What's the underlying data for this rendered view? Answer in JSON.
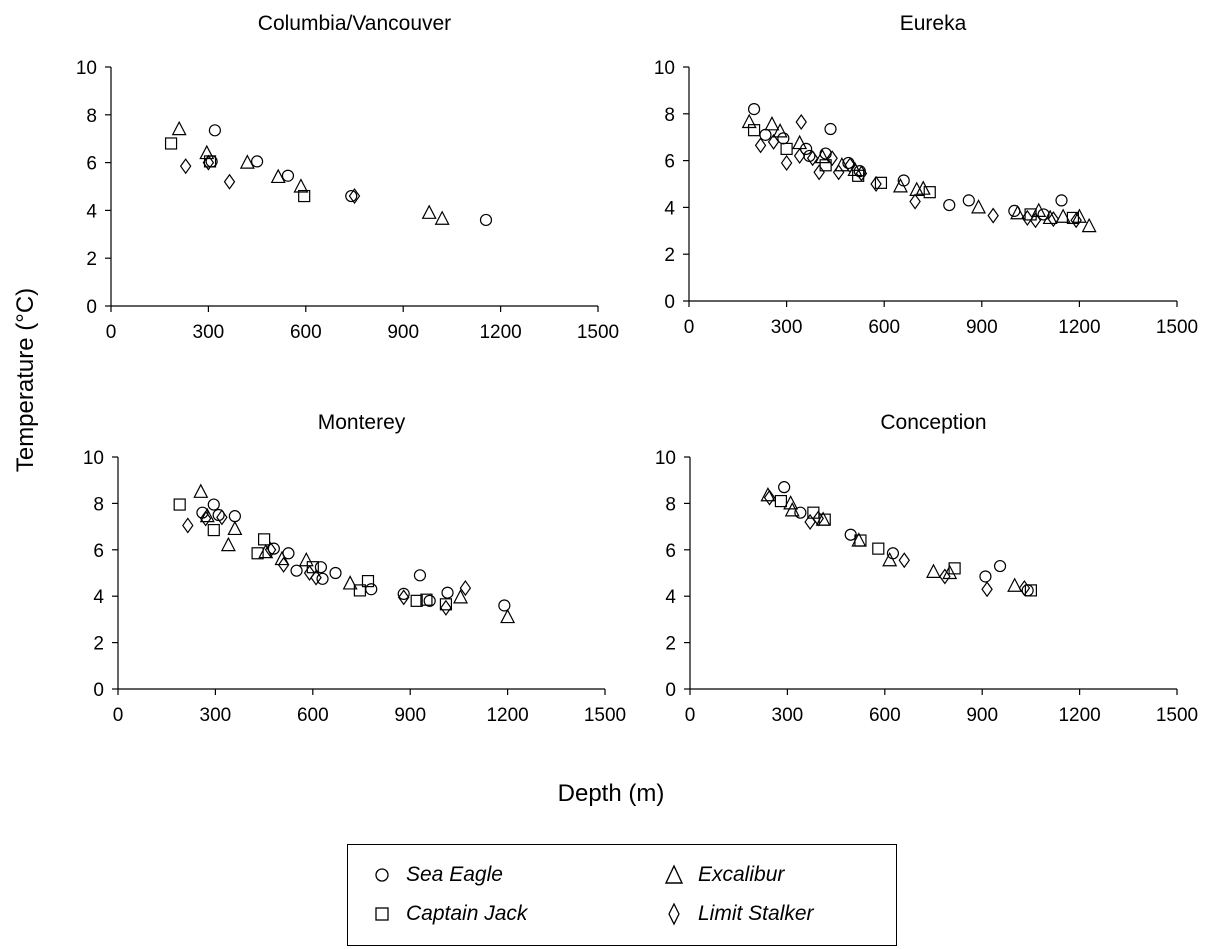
{
  "chart_data": {
    "type": "scatter",
    "ylabel": "Temperature (°C)",
    "xlabel": "Depth (m)",
    "x_ticks": [
      "0",
      "300",
      "600",
      "900",
      "1200",
      "1500"
    ],
    "y_ticks": [
      "0",
      "2",
      "4",
      "6",
      "8",
      "10"
    ],
    "xlim": [
      0,
      1500
    ],
    "ylim": [
      0,
      10
    ],
    "grid": false,
    "legend_position": "bottom-center",
    "legend": [
      {
        "name": "Sea Eagle",
        "marker": "circle"
      },
      {
        "name": "Excalibur",
        "marker": "triangle"
      },
      {
        "name": "Captain Jack",
        "marker": "square"
      },
      {
        "name": "Limit Stalker",
        "marker": "diamond"
      }
    ],
    "panels": [
      {
        "title": "Columbia/Vancouver",
        "series": [
          {
            "name": "Sea Eagle",
            "marker": "circle",
            "points": [
              [
                320,
                7.35
              ],
              [
                310,
                6.05
              ],
              [
                450,
                6.05
              ],
              [
                545,
                5.45
              ],
              [
                740,
                4.6
              ],
              [
                1155,
                3.6
              ]
            ]
          },
          {
            "name": "Captain Jack",
            "marker": "square",
            "points": [
              [
                185,
                6.8
              ],
              [
                305,
                6.05
              ],
              [
                595,
                4.6
              ]
            ]
          },
          {
            "name": "Excalibur",
            "marker": "triangle",
            "points": [
              [
                210,
                7.4
              ],
              [
                295,
                6.4
              ],
              [
                420,
                6.0
              ],
              [
                515,
                5.4
              ],
              [
                585,
                5.0
              ],
              [
                980,
                3.9
              ],
              [
                1020,
                3.65
              ]
            ]
          },
          {
            "name": "Limit Stalker",
            "marker": "diamond",
            "points": [
              [
                230,
                5.85
              ],
              [
                300,
                6.0
              ],
              [
                365,
                5.2
              ],
              [
                750,
                4.6
              ]
            ]
          }
        ]
      },
      {
        "title": "Eureka",
        "series": [
          {
            "name": "Sea Eagle",
            "marker": "circle",
            "points": [
              [
                200,
                8.2
              ],
              [
                235,
                7.1
              ],
              [
                290,
                6.95
              ],
              [
                360,
                6.5
              ],
              [
                370,
                6.2
              ],
              [
                420,
                6.3
              ],
              [
                435,
                7.35
              ],
              [
                490,
                5.9
              ],
              [
                525,
                5.55
              ],
              [
                660,
                5.15
              ],
              [
                800,
                4.1
              ],
              [
                860,
                4.3
              ],
              [
                1000,
                3.85
              ],
              [
                1090,
                3.7
              ],
              [
                1145,
                4.3
              ]
            ]
          },
          {
            "name": "Captain Jack",
            "marker": "square",
            "points": [
              [
                200,
                7.3
              ],
              [
                300,
                6.5
              ],
              [
                420,
                5.8
              ],
              [
                520,
                5.35
              ],
              [
                590,
                5.05
              ],
              [
                740,
                4.65
              ],
              [
                1050,
                3.7
              ],
              [
                1180,
                3.55
              ]
            ]
          },
          {
            "name": "Excalibur",
            "marker": "triangle",
            "points": [
              [
                185,
                7.65
              ],
              [
                255,
                7.55
              ],
              [
                280,
                7.25
              ],
              [
                340,
                6.75
              ],
              [
                410,
                6.15
              ],
              [
                470,
                5.8
              ],
              [
                510,
                5.6
              ],
              [
                650,
                4.9
              ],
              [
                700,
                4.75
              ],
              [
                720,
                4.8
              ],
              [
                890,
                4.0
              ],
              [
                1010,
                3.75
              ],
              [
                1075,
                3.85
              ],
              [
                1110,
                3.55
              ],
              [
                1150,
                3.6
              ],
              [
                1200,
                3.6
              ],
              [
                1230,
                3.2
              ]
            ]
          },
          {
            "name": "Limit Stalker",
            "marker": "diamond",
            "points": [
              [
                220,
                6.65
              ],
              [
                260,
                6.8
              ],
              [
                300,
                5.9
              ],
              [
                340,
                6.2
              ],
              [
                345,
                7.65
              ],
              [
                380,
                6.1
              ],
              [
                400,
                5.5
              ],
              [
                440,
                6.1
              ],
              [
                460,
                5.5
              ],
              [
                495,
                5.8
              ],
              [
                530,
                5.45
              ],
              [
                575,
                5.0
              ],
              [
                695,
                4.25
              ],
              [
                935,
                3.65
              ],
              [
                1040,
                3.55
              ],
              [
                1065,
                3.45
              ],
              [
                1120,
                3.5
              ],
              [
                1190,
                3.45
              ]
            ]
          }
        ]
      },
      {
        "title": "Monterey",
        "series": [
          {
            "name": "Sea Eagle",
            "marker": "circle",
            "points": [
              [
                260,
                7.6
              ],
              [
                295,
                7.95
              ],
              [
                310,
                7.5
              ],
              [
                360,
                7.45
              ],
              [
                480,
                6.05
              ],
              [
                525,
                5.85
              ],
              [
                550,
                5.1
              ],
              [
                625,
                5.25
              ],
              [
                630,
                4.75
              ],
              [
                670,
                5.0
              ],
              [
                780,
                4.3
              ],
              [
                880,
                4.1
              ],
              [
                930,
                4.9
              ],
              [
                960,
                3.8
              ],
              [
                1015,
                4.15
              ],
              [
                1190,
                3.6
              ]
            ]
          },
          {
            "name": "Captain Jack",
            "marker": "square",
            "points": [
              [
                190,
                7.95
              ],
              [
                295,
                6.85
              ],
              [
                430,
                5.85
              ],
              [
                450,
                6.45
              ],
              [
                600,
                5.25
              ],
              [
                745,
                4.25
              ],
              [
                770,
                4.65
              ],
              [
                920,
                3.8
              ],
              [
                950,
                3.85
              ],
              [
                1010,
                3.65
              ]
            ]
          },
          {
            "name": "Excalibur",
            "marker": "triangle",
            "points": [
              [
                255,
                8.5
              ],
              [
                275,
                7.45
              ],
              [
                340,
                6.2
              ],
              [
                360,
                6.9
              ],
              [
                455,
                5.9
              ],
              [
                505,
                5.6
              ],
              [
                580,
                5.55
              ],
              [
                715,
                4.55
              ],
              [
                1055,
                3.95
              ],
              [
                1200,
                3.1
              ]
            ]
          },
          {
            "name": "Limit Stalker",
            "marker": "diamond",
            "points": [
              [
                215,
                7.05
              ],
              [
                270,
                7.35
              ],
              [
                320,
                7.4
              ],
              [
                470,
                6.0
              ],
              [
                510,
                5.35
              ],
              [
                590,
                5.0
              ],
              [
                610,
                4.8
              ],
              [
                880,
                3.95
              ],
              [
                1010,
                3.5
              ],
              [
                1070,
                4.35
              ]
            ]
          }
        ]
      },
      {
        "title": "Conception",
        "series": [
          {
            "name": "Sea Eagle",
            "marker": "circle",
            "points": [
              [
                290,
                8.7
              ],
              [
                340,
                7.6
              ],
              [
                495,
                6.65
              ],
              [
                625,
                5.85
              ],
              [
                910,
                4.85
              ],
              [
                955,
                5.3
              ],
              [
                1040,
                4.25
              ]
            ]
          },
          {
            "name": "Captain Jack",
            "marker": "square",
            "points": [
              [
                280,
                8.1
              ],
              [
                380,
                7.6
              ],
              [
                415,
                7.3
              ],
              [
                525,
                6.4
              ],
              [
                580,
                6.05
              ],
              [
                815,
                5.2
              ],
              [
                1050,
                4.25
              ]
            ]
          },
          {
            "name": "Excalibur",
            "marker": "triangle",
            "points": [
              [
                240,
                8.35
              ],
              [
                310,
                8.0
              ],
              [
                315,
                7.7
              ],
              [
                410,
                7.3
              ],
              [
                520,
                6.4
              ],
              [
                615,
                5.55
              ],
              [
                750,
                5.05
              ],
              [
                800,
                5.0
              ],
              [
                1000,
                4.45
              ]
            ]
          },
          {
            "name": "Limit Stalker",
            "marker": "diamond",
            "points": [
              [
                245,
                8.25
              ],
              [
                370,
                7.2
              ],
              [
                395,
                7.35
              ],
              [
                660,
                5.55
              ],
              [
                785,
                4.85
              ],
              [
                915,
                4.3
              ],
              [
                1030,
                4.35
              ]
            ]
          }
        ]
      }
    ]
  }
}
